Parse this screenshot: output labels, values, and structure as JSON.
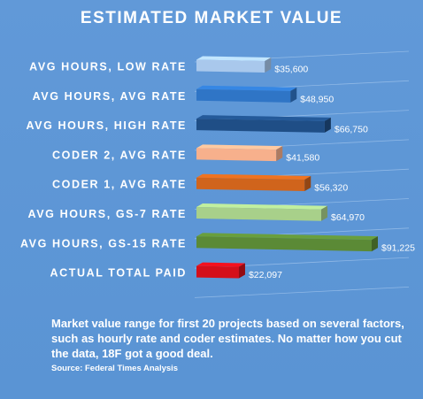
{
  "chart_data": {
    "type": "bar",
    "orientation": "horizontal",
    "title": "ESTIMATED MARKET VALUE",
    "categories": [
      "AVG HOURS, LOW RATE",
      "AVG HOURS, AVG RATE",
      "AVG HOURS, HIGH RATE",
      "CODER 2, AVG RATE",
      "CODER 1, AVG RATE",
      "AVG HOURS, GS-7 RATE",
      "AVG HOURS, GS-15 RATE",
      "ACTUAL TOTAL PAID"
    ],
    "values": [
      35600,
      48950,
      66750,
      41580,
      56320,
      64970,
      91225,
      22097
    ],
    "value_labels": [
      "$35,600",
      "$48,950",
      "$66,750",
      "$41,580",
      "$56,320",
      "$64,970",
      "$91,225",
      "$22,097"
    ],
    "colors": [
      "#a9c8ec",
      "#2f75c6",
      "#1f4e86",
      "#f7b08c",
      "#d0641c",
      "#a8d08a",
      "#5b8a36",
      "#d40f1a"
    ],
    "xlim": [
      0,
      100000
    ],
    "grid": true,
    "legend": "none"
  },
  "caption": "Market value range for first 20 projects based on several factors, such as hourly rate and coder estimates. No matter how you cut the data, 18F got a good deal.",
  "source": "Source: Federal Times Analysis"
}
